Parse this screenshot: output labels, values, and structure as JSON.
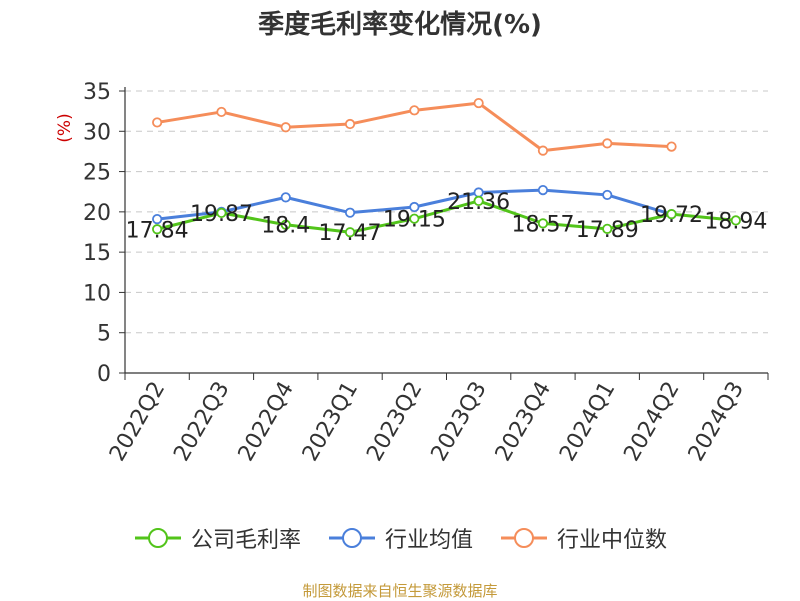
{
  "chart_data": {
    "type": "line",
    "title": "季度毛利率变化情况(%)",
    "ylabel": "(%)",
    "xlabel": "",
    "ylim": [
      0,
      35
    ],
    "yticks": [
      0,
      5,
      10,
      15,
      20,
      25,
      30,
      35
    ],
    "grid": true,
    "legend_position": "bottom",
    "categories": [
      "2022Q2",
      "2022Q3",
      "2022Q4",
      "2023Q1",
      "2023Q2",
      "2023Q3",
      "2023Q4",
      "2024Q1",
      "2024Q2",
      "2024Q3"
    ],
    "series": [
      {
        "name": "公司毛利率",
        "color": "#52c41a",
        "values": [
          17.84,
          19.87,
          18.4,
          17.47,
          19.15,
          21.36,
          18.57,
          17.89,
          19.72,
          18.94
        ],
        "labels": [
          "17.84",
          "19.87",
          "18.4",
          "17.47",
          "19.15",
          "21.36",
          "18.57",
          "17.89",
          "19.72",
          "18.94"
        ]
      },
      {
        "name": "行业均值",
        "color": "#4a7fdb",
        "values": [
          19.1,
          20.0,
          21.8,
          19.9,
          20.6,
          22.4,
          22.7,
          22.1,
          19.7,
          null
        ]
      },
      {
        "name": "行业中位数",
        "color": "#f58d5a",
        "values": [
          31.1,
          32.4,
          30.5,
          30.9,
          32.6,
          33.5,
          27.6,
          28.5,
          28.1,
          null
        ]
      }
    ]
  },
  "source_text": "制图数据来自恒生聚源数据库"
}
